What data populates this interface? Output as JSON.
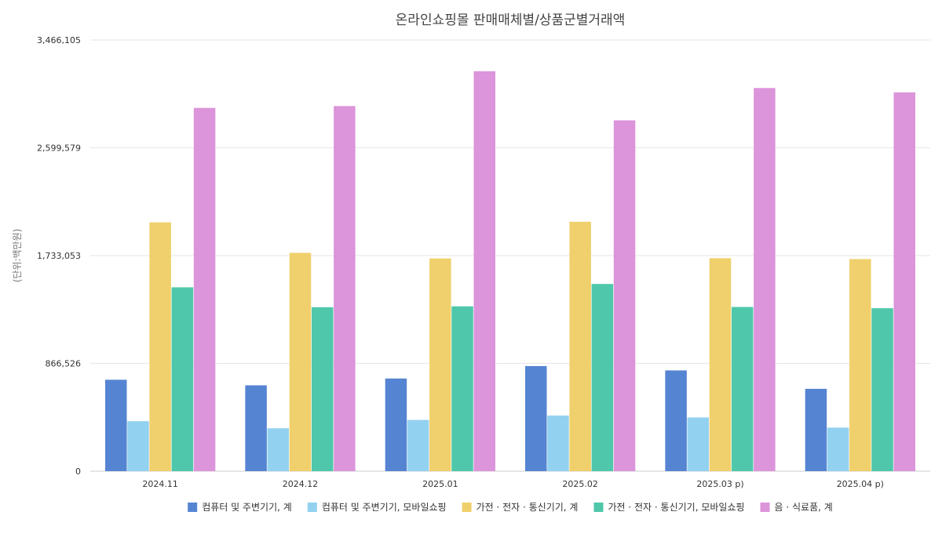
{
  "chart_data": {
    "type": "bar",
    "title": "온라인쇼핑몰 판매매체별/상품군별거래액",
    "ylabel": "(단위:백만원)",
    "xlabel": "",
    "ylim": [
      0,
      3466105
    ],
    "yticks": [
      0,
      866526,
      1733053,
      2599579,
      3466105
    ],
    "ytick_labels": [
      "0",
      "866,526",
      "1,733,053",
      "2,599,579",
      "3,466,105"
    ],
    "categories": [
      "2024.11",
      "2024.12",
      "2025.01",
      "2025.02",
      "2025.03 p)",
      "2025.04 p)"
    ],
    "grid": true,
    "legend_position": "bottom",
    "series": [
      {
        "name": "컴퓨터 및 주변기기, 계",
        "color": "#5584d2",
        "values": [
          735000,
          690000,
          745000,
          845000,
          810000,
          662000
        ]
      },
      {
        "name": "컴퓨터 및 주변기기, 모바일쇼핑",
        "color": "#93d1f0",
        "values": [
          402000,
          345000,
          412000,
          447000,
          432000,
          350000
        ]
      },
      {
        "name": "가전 · 전자 · 통신기기, 계",
        "color": "#f0d06c",
        "values": [
          2000000,
          1755000,
          1710000,
          2005000,
          1712000,
          1705000
        ]
      },
      {
        "name": "가전 · 전자 · 통신기기, 모바일쇼핑",
        "color": "#4fc7aa",
        "values": [
          1478000,
          1318000,
          1325000,
          1505000,
          1320000,
          1310000
        ]
      },
      {
        "name": "음 · 식료품, 계",
        "color": "#dc94da",
        "values": [
          2920000,
          2935000,
          3215000,
          2820000,
          3080000,
          3045000
        ]
      }
    ]
  }
}
